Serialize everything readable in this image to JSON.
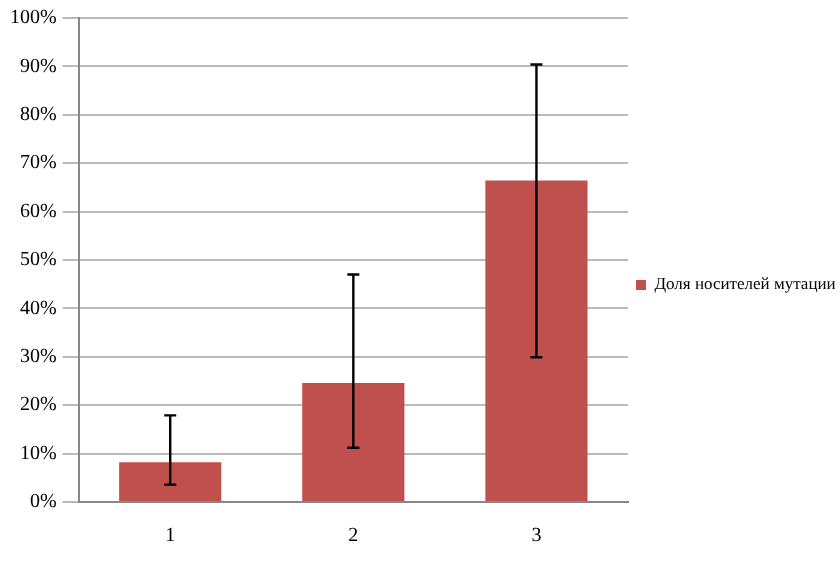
{
  "chart_data": {
    "type": "bar",
    "categories": [
      "1",
      "2",
      "3"
    ],
    "series": [
      {
        "name": "Доля носителей мутации",
        "color": "#c0504d",
        "values": [
          8.2,
          24.6,
          66.4
        ],
        "errors": [
          [
            3.6,
            17.9
          ],
          [
            11.2,
            47
          ],
          [
            29.9,
            90.4
          ]
        ]
      }
    ],
    "ylim": [
      0,
      100
    ],
    "yticks": [
      {
        "value": 0,
        "label": "0%"
      },
      {
        "value": 10,
        "label": "10%"
      },
      {
        "value": 20,
        "label": "20%"
      },
      {
        "value": 30,
        "label": "30%"
      },
      {
        "value": 40,
        "label": "40%"
      },
      {
        "value": 50,
        "label": "50%"
      },
      {
        "value": 60,
        "label": "60%"
      },
      {
        "value": 70,
        "label": "70%"
      },
      {
        "value": 80,
        "label": "80%"
      },
      {
        "value": 90,
        "label": "90%"
      },
      {
        "value": 100,
        "label": "100%"
      }
    ],
    "grid": "y",
    "legend": "right"
  }
}
